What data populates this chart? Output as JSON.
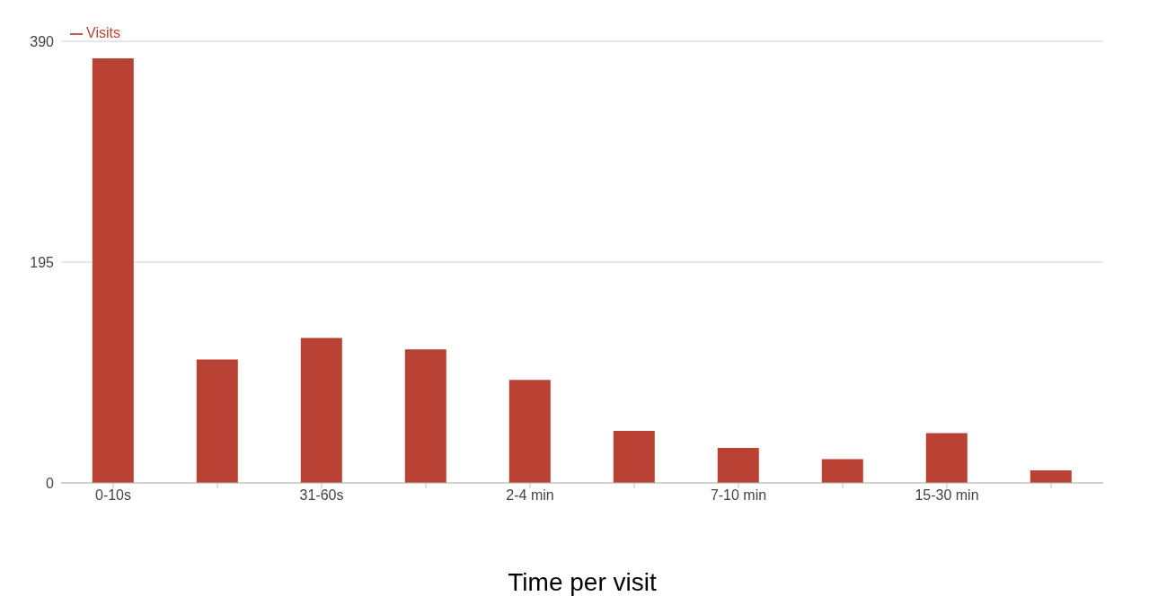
{
  "chart_data": {
    "type": "bar",
    "xlabel": "Time per visit",
    "categories": [
      "0-10s",
      null,
      "31-60s",
      null,
      "2-4 min",
      null,
      "7-10 min",
      null,
      "15-30 min",
      null
    ],
    "series": [
      {
        "name": "Visits",
        "color": "#b94234",
        "values": [
          375,
          109,
          128,
          118,
          91,
          46,
          31,
          21,
          44,
          11
        ]
      }
    ],
    "ylim": [
      0,
      390
    ],
    "yticks": [
      0,
      195,
      390
    ],
    "grid": "y",
    "legend": "top left"
  }
}
